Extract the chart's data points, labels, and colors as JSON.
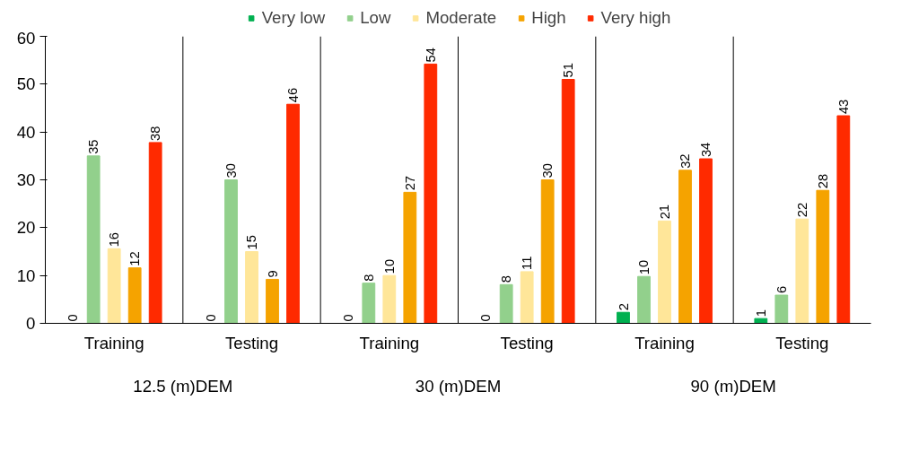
{
  "chart_data": {
    "type": "bar",
    "categories": [
      "Training",
      "Testing",
      "Training",
      "Testing",
      "Training",
      "Testing"
    ],
    "annotations": [
      "12.5 (m)DEM",
      "30 (m)DEM",
      "90 (m)DEM"
    ],
    "series": [
      {
        "name": "Very low",
        "color": "#00b050",
        "values": [
          0,
          0,
          0,
          0,
          2.3,
          1.0
        ],
        "value_labels": [
          "0",
          "0",
          "0",
          "0",
          "2",
          "1"
        ]
      },
      {
        "name": "Low",
        "color": "#92d08c",
        "values": [
          35,
          30,
          8.4,
          8.1,
          9.8,
          5.9
        ],
        "value_labels": [
          "35",
          "30",
          "8",
          "8",
          "10",
          "6"
        ]
      },
      {
        "name": "Moderate",
        "color": "#ffe699",
        "values": [
          15.6,
          15,
          10,
          10.8,
          21.4,
          21.8
        ],
        "value_labels": [
          "16",
          "15",
          "10",
          "11",
          "21",
          "22"
        ]
      },
      {
        "name": "High",
        "color": "#f5a300",
        "values": [
          11.6,
          9.2,
          27.4,
          30,
          32,
          27.8
        ],
        "value_labels": [
          "12",
          "9",
          "27",
          "30",
          "32",
          "28"
        ]
      },
      {
        "name": "Very high",
        "color": "#ff2a00",
        "values": [
          37.8,
          45.8,
          54.2,
          51,
          34.4,
          43.4
        ],
        "value_labels": [
          "38",
          "46",
          "54",
          "51",
          "34",
          "43"
        ]
      }
    ],
    "ylim": [
      0,
      60
    ],
    "yticks": [
      0,
      10,
      20,
      30,
      40,
      50,
      60
    ],
    "grid": false,
    "legend": "top"
  }
}
